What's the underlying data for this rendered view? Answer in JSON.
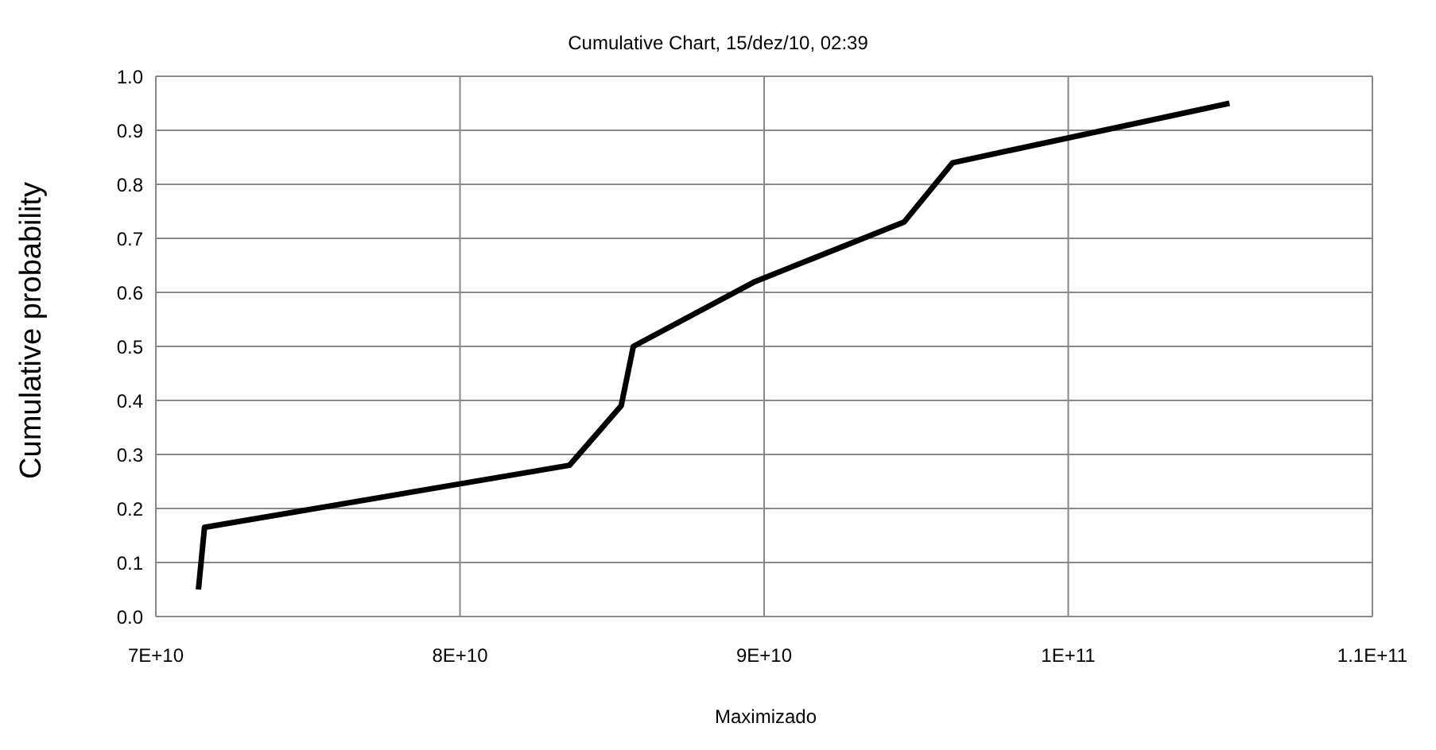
{
  "chart_data": {
    "type": "line",
    "title": "Cumulative Chart, 15/dez/10, 02:39",
    "xlabel": "Maximizado",
    "ylabel": "Cumulative probability",
    "x": [
      71400000000,
      71600000000,
      83600000000,
      85300000000,
      85700000000,
      89700000000,
      94600000000,
      96200000000,
      105300000000
    ],
    "series": [
      {
        "color": "#000000",
        "values": [
          0.05,
          0.165,
          0.28,
          0.39,
          0.5,
          0.62,
          0.73,
          0.84,
          0.95
        ]
      }
    ],
    "xlim": [
      70000000000,
      110000000000
    ],
    "xticks": [
      {
        "value": 70000000000,
        "label": "7E+10"
      },
      {
        "value": 80000000000,
        "label": "8E+10"
      },
      {
        "value": 90000000000,
        "label": "9E+10"
      },
      {
        "value": 100000000000,
        "label": "1E+11"
      },
      {
        "value": 110000000000,
        "label": "1.1E+11"
      }
    ],
    "ylim": [
      0,
      1
    ],
    "yticks": [
      {
        "value": 0,
        "label": "0.0"
      },
      {
        "value": 0.1,
        "label": "0.1"
      },
      {
        "value": 0.2,
        "label": "0.2"
      },
      {
        "value": 0.3,
        "label": "0.3"
      },
      {
        "value": 0.4,
        "label": "0.4"
      },
      {
        "value": 0.5,
        "label": "0.5"
      },
      {
        "value": 0.6,
        "label": "0.6"
      },
      {
        "value": 0.7,
        "label": "0.7"
      },
      {
        "value": 0.8,
        "label": "0.8"
      },
      {
        "value": 0.9,
        "label": "0.9"
      },
      {
        "value": 1,
        "label": "1.0"
      }
    ],
    "grid": true,
    "legend": false,
    "marker": "none",
    "line_style": "solid"
  }
}
